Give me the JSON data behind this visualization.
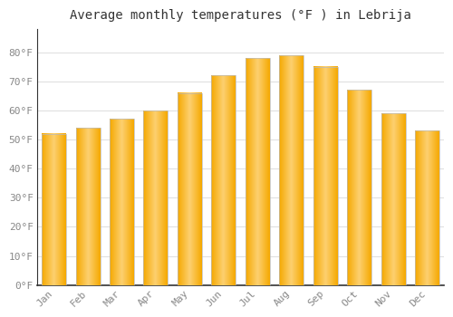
{
  "title": "Average monthly temperatures (°F ) in Lebrija",
  "months": [
    "Jan",
    "Feb",
    "Mar",
    "Apr",
    "May",
    "Jun",
    "Jul",
    "Aug",
    "Sep",
    "Oct",
    "Nov",
    "Dec"
  ],
  "values": [
    52,
    54,
    57,
    60,
    66,
    72,
    78,
    79,
    75,
    67,
    59,
    53
  ],
  "bar_color_light": "#FDD070",
  "bar_color_dark": "#F5A800",
  "bar_edge_color": "#BBBBBB",
  "background_color": "#FFFFFF",
  "grid_color": "#E0E0E0",
  "text_color": "#888888",
  "spine_color": "#333333",
  "ylim": [
    0,
    88
  ],
  "yticks": [
    0,
    10,
    20,
    30,
    40,
    50,
    60,
    70,
    80
  ],
  "ytick_labels": [
    "0°F",
    "10°F",
    "20°F",
    "30°F",
    "40°F",
    "50°F",
    "60°F",
    "70°F",
    "80°F"
  ],
  "title_fontsize": 10,
  "tick_fontsize": 8,
  "bar_width": 0.72
}
